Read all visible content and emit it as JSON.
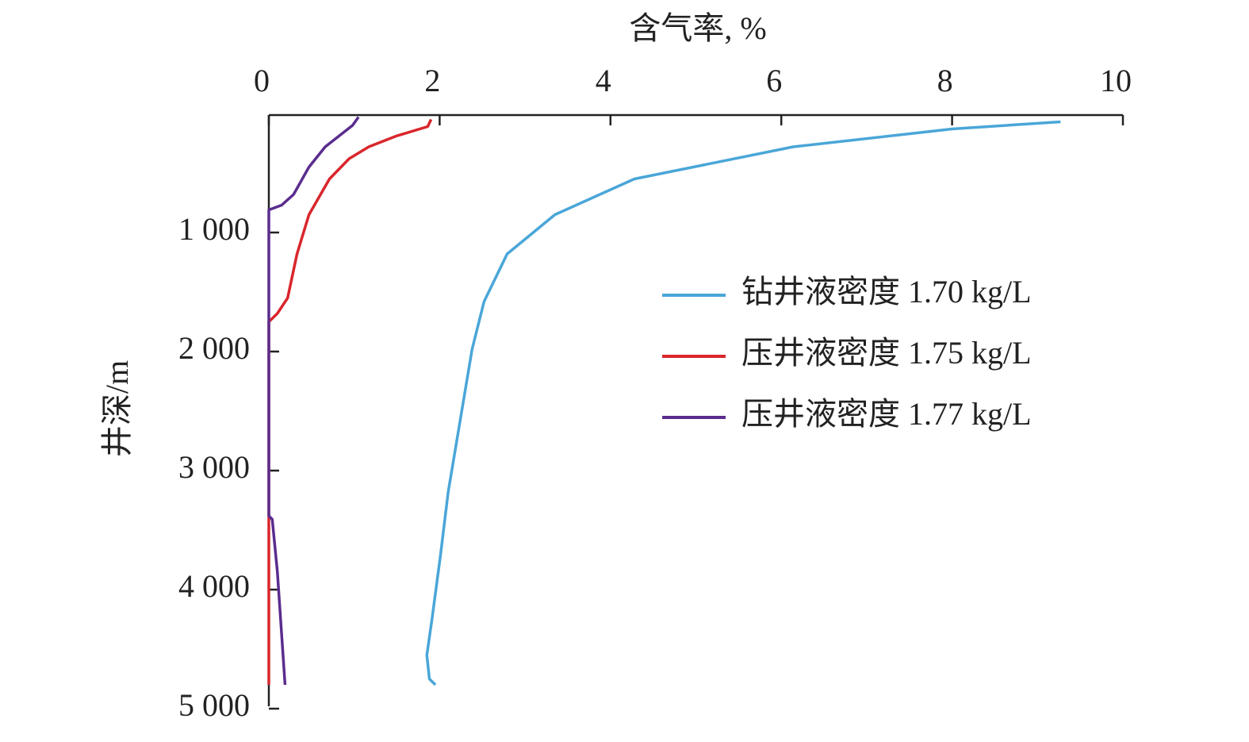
{
  "chart_data": {
    "type": "line",
    "xlabel": "含气率, %",
    "ylabel": "井深/m",
    "xlim": [
      0,
      10
    ],
    "xticks": [
      0,
      2,
      4,
      6,
      8,
      10
    ],
    "ylim": [
      0,
      5000
    ],
    "yticks": [
      {
        "value": 1000,
        "label": "1 000"
      },
      {
        "value": 2000,
        "label": "2 000"
      },
      {
        "value": 3000,
        "label": "3 000"
      },
      {
        "value": 4000,
        "label": "4 000"
      },
      {
        "value": 5000,
        "label": "5 000"
      }
    ],
    "y_inverted": true,
    "legend": "right",
    "series": [
      {
        "name": "钻井液密度 1.70 kg/L",
        "color": "#4aa6d8",
        "x": [
          9.27,
          8.0,
          6.14,
          4.28,
          3.35,
          2.79,
          2.52,
          2.38,
          2.24,
          2.1,
          2.01,
          1.91,
          1.85,
          1.88,
          1.95
        ],
        "values": [
          70,
          130,
          280,
          550,
          850,
          1180,
          1580,
          1980,
          2580,
          3180,
          3710,
          4250,
          4550,
          4750,
          4800
        ]
      },
      {
        "name": "压井液密度 1.75 kg/L",
        "color": "#d9262c",
        "x": [
          1.9,
          1.86,
          1.49,
          1.17,
          0.94,
          0.71,
          0.47,
          0.33,
          0.22,
          0.1,
          0,
          0
        ],
        "values": [
          50,
          110,
          190,
          280,
          380,
          550,
          850,
          1180,
          1550,
          1680,
          1750,
          4800
        ]
      },
      {
        "name": "压井液密度 1.77 kg/L",
        "color": "#5b2d8e",
        "x": [
          1.05,
          0.98,
          0.66,
          0.47,
          0.29,
          0.15,
          0,
          0,
          0.04,
          0.1,
          0.19
        ],
        "values": [
          30,
          100,
          280,
          450,
          680,
          770,
          810,
          3380,
          3410,
          3850,
          4800
        ]
      }
    ]
  }
}
